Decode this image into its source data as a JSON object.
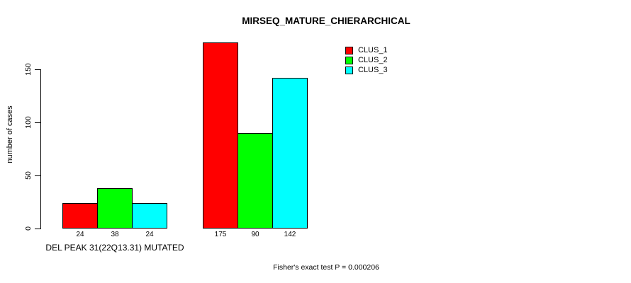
{
  "title": "MIRSEQ_MATURE_CHIERARCHICAL",
  "footer": "Fisher's exact test P = 0.000206",
  "chart_data": {
    "type": "bar",
    "title": "MIRSEQ_MATURE_CHIERARCHICAL",
    "ylabel": "number of cases",
    "xlabel": "",
    "yticks": [
      0,
      50,
      100,
      150
    ],
    "ylim": [
      0,
      175
    ],
    "grid": false,
    "legend_position": "top-right",
    "series_names": [
      "CLUS_1",
      "CLUS_2",
      "CLUS_3"
    ],
    "colors": [
      "#ff0000",
      "#00ff00",
      "#00ffff"
    ],
    "groups": [
      {
        "label": "DEL PEAK 31(22Q13.31) MUTATED",
        "values": [
          24,
          38,
          24
        ]
      },
      {
        "label": "",
        "values": [
          175,
          90,
          142
        ]
      }
    ],
    "annotation": "Fisher's exact test P = 0.000206"
  }
}
